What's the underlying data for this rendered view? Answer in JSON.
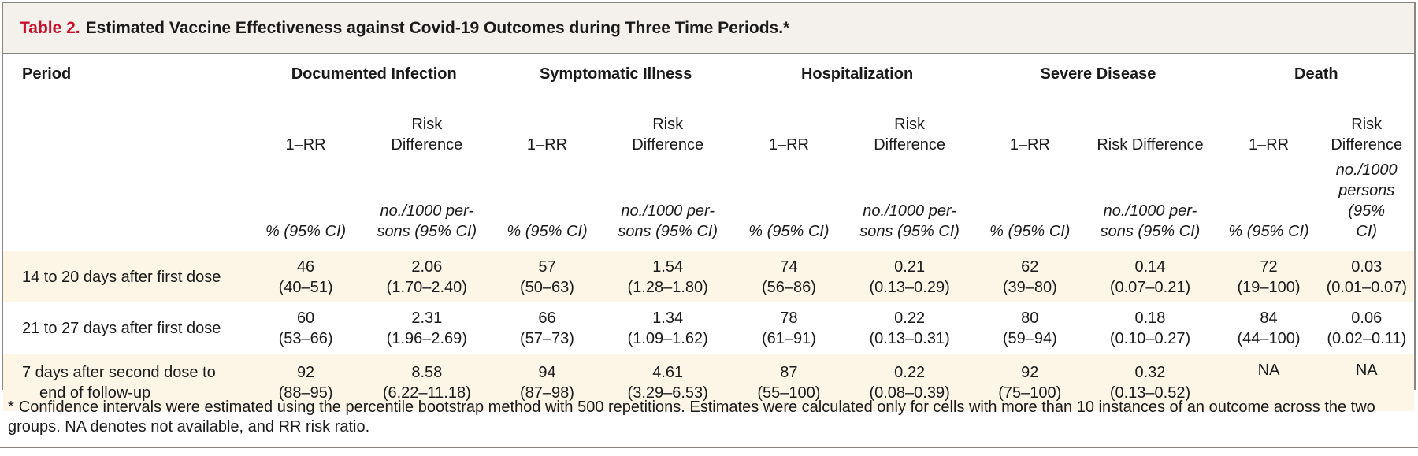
{
  "title": {
    "label": "Table 2.",
    "text": "Estimated Vaccine Effectiveness against Covid-19 Outcomes during Three Time Periods.*"
  },
  "columns": {
    "period": "Period",
    "groups": [
      "Documented Infection",
      "Symptomatic Illness",
      "Hospitalization",
      "Severe Disease",
      "Death"
    ],
    "sub": {
      "rr": "1–RR",
      "rd_line1": "Risk",
      "rd_line2": "Difference",
      "rd_single": "Risk Difference"
    },
    "units": {
      "pct": "% (95% CI)",
      "rd_line1": "no./1000 per-",
      "rd_line2": "sons (95% CI)",
      "death_line1": "no./1000",
      "death_line2": "persons (95%",
      "death_line3": "CI)"
    }
  },
  "rows": [
    {
      "period_line1": "14 to 20 days after first dose",
      "period_line2": "",
      "cells": [
        [
          "46",
          "(40–51)"
        ],
        [
          "2.06",
          "(1.70–2.40)"
        ],
        [
          "57",
          "(50–63)"
        ],
        [
          "1.54",
          "(1.28–1.80)"
        ],
        [
          "74",
          "(56–86)"
        ],
        [
          "0.21",
          "(0.13–0.29)"
        ],
        [
          "62",
          "(39–80)"
        ],
        [
          "0.14",
          "(0.07–0.21)"
        ],
        [
          "72",
          "(19–100)"
        ],
        [
          "0.03",
          "(0.01–0.07)"
        ]
      ]
    },
    {
      "period_line1": "21 to 27 days after first dose",
      "period_line2": "",
      "cells": [
        [
          "60",
          "(53–66)"
        ],
        [
          "2.31",
          "(1.96–2.69)"
        ],
        [
          "66",
          "(57–73)"
        ],
        [
          "1.34",
          "(1.09–1.62)"
        ],
        [
          "78",
          "(61–91)"
        ],
        [
          "0.22",
          "(0.13–0.31)"
        ],
        [
          "80",
          "(59–94)"
        ],
        [
          "0.18",
          "(0.10–0.27)"
        ],
        [
          "84",
          "(44–100)"
        ],
        [
          "0.06",
          "(0.02–0.11)"
        ]
      ]
    },
    {
      "period_line1": "7 days after second dose to",
      "period_line2": "end of follow-up",
      "cells": [
        [
          "92",
          "(88–95)"
        ],
        [
          "8.58",
          "(6.22–11.18)"
        ],
        [
          "94",
          "(87–98)"
        ],
        [
          "4.61",
          "(3.29–6.53)"
        ],
        [
          "87",
          "(55–100)"
        ],
        [
          "0.22",
          "(0.08–0.39)"
        ],
        [
          "92",
          "(75–100)"
        ],
        [
          "0.32",
          "(0.13–0.52)"
        ],
        [
          "NA",
          ""
        ],
        [
          "NA",
          ""
        ]
      ]
    }
  ],
  "footnote": {
    "mark": "*",
    "text": "Confidence intervals were estimated using the percentile bootstrap method with 500 repetitions. Estimates were calculated only for cells with more than 10 instances of an outcome across the two groups. NA denotes not available, and RR risk ratio."
  }
}
